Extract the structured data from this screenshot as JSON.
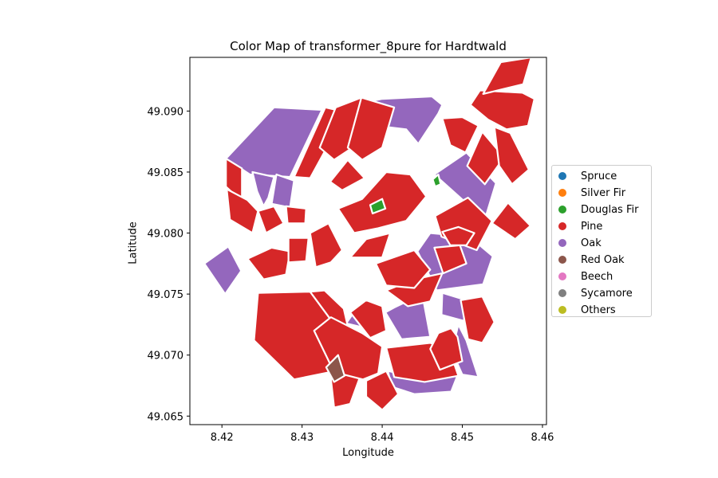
{
  "chart_data": {
    "type": "map",
    "title": "Color Map of transformer_8pure for Hardtwald",
    "xlabel": "Longitude",
    "ylabel": "Latitude",
    "xlim": [
      8.416,
      8.4605
    ],
    "ylim": [
      49.0643,
      49.0944
    ],
    "x_ticks": [
      8.42,
      8.43,
      8.44,
      8.45,
      8.46
    ],
    "x_tick_labels": [
      "8.42",
      "8.43",
      "8.44",
      "8.45",
      "8.46"
    ],
    "y_ticks": [
      49.065,
      49.07,
      49.075,
      49.08,
      49.085,
      49.09
    ],
    "y_tick_labels": [
      "49.065",
      "49.070",
      "49.075",
      "49.080",
      "49.085",
      "49.090"
    ],
    "legend_position": "right",
    "legend": [
      {
        "label": "Spruce",
        "color": "#1f77b4"
      },
      {
        "label": "Silver Fir",
        "color": "#ff7f0e"
      },
      {
        "label": "Douglas Fir",
        "color": "#2ca02c"
      },
      {
        "label": "Pine",
        "color": "#d62728"
      },
      {
        "label": "Oak",
        "color": "#9467bd"
      },
      {
        "label": "Red Oak",
        "color": "#8c564b"
      },
      {
        "label": "Beech",
        "color": "#e377c2"
      },
      {
        "label": "Sycamore",
        "color": "#7f7f7f"
      },
      {
        "label": "Others",
        "color": "#bcbd22"
      }
    ],
    "parcels_by_class": {
      "Oak": [
        [
          [
            8.4265,
            49.0903
          ],
          [
            8.4325,
            49.0901
          ],
          [
            8.4285,
            49.0846
          ],
          [
            8.4235,
            49.0848
          ],
          [
            8.4205,
            49.0861
          ]
        ],
        [
          [
            8.4238,
            49.085
          ],
          [
            8.4265,
            49.0846
          ],
          [
            8.4258,
            49.0829
          ],
          [
            8.4252,
            49.0822
          ],
          [
            8.4244,
            49.0834
          ]
        ],
        [
          [
            8.4268,
            49.0848
          ],
          [
            8.429,
            49.0843
          ],
          [
            8.4285,
            49.0821
          ],
          [
            8.4262,
            49.0824
          ]
        ],
        [
          [
            8.4178,
            49.0775
          ],
          [
            8.4208,
            49.0789
          ],
          [
            8.4224,
            49.0769
          ],
          [
            8.4204,
            49.075
          ]
        ],
        [
          [
            8.4377,
            49.0907
          ],
          [
            8.44,
            49.091
          ],
          [
            8.4462,
            49.0912
          ],
          [
            8.4475,
            49.0905
          ],
          [
            8.447,
            49.0898
          ],
          [
            8.4462,
            49.089
          ],
          [
            8.4445,
            49.0873
          ],
          [
            8.443,
            49.0885
          ],
          [
            8.4405,
            49.0887
          ],
          [
            8.4378,
            49.0893
          ]
        ],
        [
          [
            8.4465,
            49.0848
          ],
          [
            8.4505,
            49.0866
          ],
          [
            8.4542,
            49.0841
          ],
          [
            8.4528,
            49.0811
          ]
        ],
        [
          [
            8.4444,
            49.0785
          ],
          [
            8.446,
            49.08
          ],
          [
            8.4509,
            49.0797
          ],
          [
            8.4538,
            49.0781
          ],
          [
            8.4526,
            49.0758
          ],
          [
            8.4468,
            49.0753
          ]
        ],
        [
          [
            8.4475,
            49.0751
          ],
          [
            8.4505,
            49.0745
          ],
          [
            8.4502,
            49.0728
          ],
          [
            8.4474,
            49.0733
          ]
        ],
        [
          [
            8.4415,
            49.0739
          ],
          [
            8.445,
            49.075
          ],
          [
            8.446,
            49.0715
          ],
          [
            8.4424,
            49.0713
          ],
          [
            8.4404,
            49.0735
          ]
        ],
        [
          [
            8.4407,
            49.0687
          ],
          [
            8.4453,
            49.068
          ],
          [
            8.4495,
            49.0685
          ],
          [
            8.4486,
            49.067
          ],
          [
            8.444,
            49.0668
          ],
          [
            8.4412,
            49.0674
          ]
        ],
        [
          [
            8.4495,
            49.0725
          ],
          [
            8.4505,
            49.0712
          ],
          [
            8.452,
            49.0682
          ],
          [
            8.45,
            49.0684
          ],
          [
            8.4487,
            49.0703
          ]
        ],
        [
          [
            8.4355,
            49.0726
          ],
          [
            8.4368,
            49.0738
          ],
          [
            8.438,
            49.0722
          ]
        ]
      ],
      "Pine": [
        [
          [
            8.4329,
            49.0903
          ],
          [
            8.4355,
            49.0899
          ],
          [
            8.431,
            49.0845
          ],
          [
            8.429,
            49.0846
          ]
        ],
        [
          [
            8.4342,
            49.0903
          ],
          [
            8.4374,
            49.0911
          ],
          [
            8.4393,
            49.0883
          ],
          [
            8.434,
            49.086
          ],
          [
            8.4322,
            49.087
          ]
        ],
        [
          [
            8.4374,
            49.0911
          ],
          [
            8.4415,
            49.0903
          ],
          [
            8.44,
            49.087
          ],
          [
            8.4375,
            49.086
          ],
          [
            8.4357,
            49.087
          ]
        ],
        [
          [
            8.4205,
            49.0861
          ],
          [
            8.4225,
            49.0853
          ],
          [
            8.4225,
            49.0826
          ],
          [
            8.4205,
            49.0838
          ]
        ],
        [
          [
            8.4206,
            49.0836
          ],
          [
            8.4232,
            49.0827
          ],
          [
            8.4245,
            49.0818
          ],
          [
            8.4238,
            49.08
          ],
          [
            8.421,
            49.0811
          ]
        ],
        [
          [
            8.4245,
            49.0818
          ],
          [
            8.4265,
            49.0822
          ],
          [
            8.4277,
            49.0808
          ],
          [
            8.4255,
            49.08
          ]
        ],
        [
          [
            8.428,
            49.0822
          ],
          [
            8.4305,
            49.082
          ],
          [
            8.4304,
            49.0808
          ],
          [
            8.4282,
            49.0808
          ]
        ],
        [
          [
            8.4232,
            49.0779
          ],
          [
            8.4262,
            49.0788
          ],
          [
            8.4285,
            49.0785
          ],
          [
            8.428,
            49.0766
          ],
          [
            8.4252,
            49.0762
          ]
        ],
        [
          [
            8.4283,
            49.0796
          ],
          [
            8.4308,
            49.0796
          ],
          [
            8.4305,
            49.0777
          ],
          [
            8.4283,
            49.0776
          ]
        ],
        [
          [
            8.431,
            49.08
          ],
          [
            8.4333,
            49.0808
          ],
          [
            8.435,
            49.0786
          ],
          [
            8.4336,
            49.0776
          ],
          [
            8.4317,
            49.0772
          ]
        ],
        [
          [
            8.4345,
            49.082
          ],
          [
            8.4375,
            49.0828
          ],
          [
            8.4405,
            49.085
          ],
          [
            8.4435,
            49.0848
          ],
          [
            8.4455,
            49.083
          ],
          [
            8.443,
            49.081
          ],
          [
            8.4395,
            49.0804
          ],
          [
            8.4365,
            49.08
          ]
        ],
        [
          [
            8.4335,
            49.0842
          ],
          [
            8.4357,
            49.086
          ],
          [
            8.4378,
            49.0845
          ],
          [
            8.435,
            49.0835
          ]
        ],
        [
          [
            8.4475,
            49.0894
          ],
          [
            8.45,
            49.0895
          ],
          [
            8.452,
            49.0888
          ],
          [
            8.4504,
            49.0866
          ],
          [
            8.4485,
            49.0872
          ]
        ],
        [
          [
            8.4525,
            49.0883
          ],
          [
            8.4552,
            49.0862
          ],
          [
            8.4528,
            49.084
          ],
          [
            8.4506,
            49.0855
          ]
        ],
        [
          [
            8.451,
            49.0905
          ],
          [
            8.4522,
            49.0917
          ],
          [
            8.4575,
            49.0915
          ],
          [
            8.459,
            49.091
          ],
          [
            8.4582,
            49.0888
          ],
          [
            8.4555,
            49.0885
          ],
          [
            8.4532,
            49.0893
          ]
        ],
        [
          [
            8.454,
            49.0887
          ],
          [
            8.456,
            49.0882
          ],
          [
            8.4583,
            49.0852
          ],
          [
            8.4562,
            49.084
          ],
          [
            8.4546,
            49.0855
          ]
        ],
        [
          [
            8.4526,
            49.0914
          ],
          [
            8.4548,
            49.094
          ],
          [
            8.4586,
            49.0944
          ],
          [
            8.4576,
            49.0922
          ]
        ],
        [
          [
            8.4466,
            49.0814
          ],
          [
            8.4507,
            49.0829
          ],
          [
            8.4537,
            49.081
          ],
          [
            8.4518,
            49.0786
          ],
          [
            8.4474,
            49.0797
          ]
        ],
        [
          [
            8.4537,
            49.0808
          ],
          [
            8.4557,
            49.0825
          ],
          [
            8.4585,
            49.0806
          ],
          [
            8.4566,
            49.0795
          ]
        ],
        [
          [
            8.4465,
            49.0788
          ],
          [
            8.4497,
            49.079
          ],
          [
            8.4505,
            49.0775
          ],
          [
            8.4476,
            49.0767
          ]
        ],
        [
          [
            8.4245,
            49.0751
          ],
          [
            8.431,
            49.0752
          ],
          [
            8.4346,
            49.072
          ],
          [
            8.4335,
            49.0686
          ],
          [
            8.429,
            49.068
          ],
          [
            8.424,
            49.0712
          ]
        ],
        [
          [
            8.431,
            49.0752
          ],
          [
            8.4328,
            49.0753
          ],
          [
            8.4352,
            49.0738
          ],
          [
            8.436,
            49.0715
          ],
          [
            8.4346,
            49.072
          ]
        ],
        [
          [
            8.4335,
            49.0686
          ],
          [
            8.4352,
            49.0702
          ],
          [
            8.4375,
            49.0687
          ],
          [
            8.436,
            49.066
          ],
          [
            8.434,
            49.0657
          ]
        ],
        [
          [
            8.4315,
            49.072
          ],
          [
            8.4336,
            49.0731
          ],
          [
            8.4375,
            49.0718
          ],
          [
            8.44,
            49.0707
          ],
          [
            8.4395,
            49.0685
          ],
          [
            8.4376,
            49.068
          ],
          [
            8.434,
            49.0686
          ]
        ],
        [
          [
            8.436,
            49.0735
          ],
          [
            8.438,
            49.0745
          ],
          [
            8.44,
            49.074
          ],
          [
            8.4405,
            49.072
          ],
          [
            8.4385,
            49.0714
          ]
        ],
        [
          [
            8.438,
            49.0679
          ],
          [
            8.4405,
            49.0687
          ],
          [
            8.442,
            49.0668
          ],
          [
            8.44,
            49.0655
          ],
          [
            8.438,
            49.0666
          ]
        ],
        [
          [
            8.4405,
            49.0753
          ],
          [
            8.444,
            49.0762
          ],
          [
            8.4475,
            49.0767
          ],
          [
            8.446,
            49.0744
          ],
          [
            8.4432,
            49.074
          ]
        ],
        [
          [
            8.4405,
            49.0706
          ],
          [
            8.446,
            49.071
          ],
          [
            8.4484,
            49.0704
          ],
          [
            8.4495,
            49.0683
          ],
          [
            8.4453,
            49.0678
          ],
          [
            8.4415,
            49.0682
          ]
        ],
        [
          [
            8.4486,
            49.0722
          ],
          [
            8.4494,
            49.0715
          ],
          [
            8.45,
            49.0695
          ],
          [
            8.4472,
            49.0688
          ],
          [
            8.446,
            49.0705
          ],
          [
            8.447,
            49.0718
          ]
        ],
        [
          [
            8.4498,
            49.0745
          ],
          [
            8.4525,
            49.0748
          ],
          [
            8.454,
            49.0727
          ],
          [
            8.4525,
            49.071
          ],
          [
            8.4507,
            49.0713
          ]
        ],
        [
          [
            8.4475,
            49.0801
          ],
          [
            8.4495,
            49.0805
          ],
          [
            8.4515,
            49.08
          ],
          [
            8.4505,
            49.079
          ],
          [
            8.4485,
            49.079
          ]
        ],
        [
          [
            8.4392,
            49.0775
          ],
          [
            8.444,
            49.0786
          ],
          [
            8.446,
            49.077
          ],
          [
            8.444,
            49.0755
          ],
          [
            8.4405,
            49.0757
          ]
        ],
        [
          [
            8.436,
            49.078
          ],
          [
            8.438,
            49.0795
          ],
          [
            8.441,
            49.08
          ],
          [
            8.44,
            49.078
          ]
        ]
      ],
      "Douglas Fir": [
        [
          [
            8.4385,
            49.0823
          ],
          [
            8.44,
            49.0828
          ],
          [
            8.4404,
            49.082
          ],
          [
            8.4388,
            49.0816
          ]
        ],
        [
          [
            8.4463,
            49.0844
          ],
          [
            8.447,
            49.0848
          ],
          [
            8.4473,
            49.084
          ],
          [
            8.4466,
            49.0838
          ]
        ]
      ],
      "Red Oak": [
        [
          [
            8.433,
            49.069
          ],
          [
            8.4345,
            49.07
          ],
          [
            8.4353,
            49.0683
          ],
          [
            8.434,
            49.0678
          ]
        ]
      ]
    }
  }
}
